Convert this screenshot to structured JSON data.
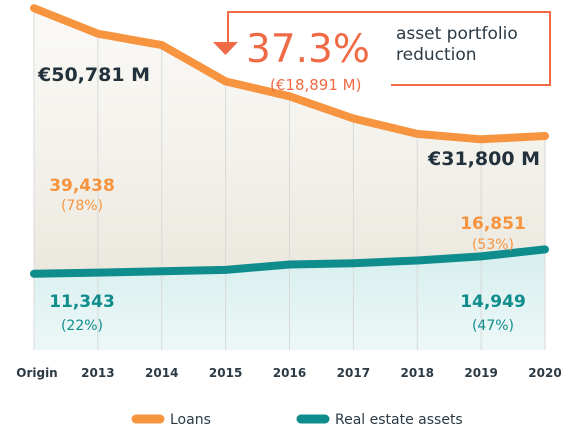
{
  "chart_data": {
    "type": "area",
    "categories": [
      "Origin",
      "2013",
      "2014",
      "2015",
      "2016",
      "2017",
      "2018",
      "2019",
      "2020"
    ],
    "series": [
      {
        "name": "Loans",
        "color": "#f7943f",
        "values": [
          39438,
          35500,
          33600,
          28000,
          25000,
          21500,
          18800,
          17400,
          16851
        ]
      },
      {
        "name": "Real estate assets",
        "color": "#0f8d8d",
        "values": [
          11343,
          11500,
          11700,
          11900,
          12700,
          12900,
          13300,
          13900,
          14949
        ]
      }
    ],
    "ylim": [
      0,
      52000
    ],
    "annotations": {
      "start_total": "€50,781 M",
      "end_total": "€31,800 M",
      "start_loans": "39,438",
      "start_loans_pct": "(78%)",
      "start_re": "11,343",
      "start_re_pct": "(22%)",
      "end_loans": "16,851",
      "end_loans_pct": "(53%)",
      "end_re": "14,949",
      "end_re_pct": "(47%)",
      "reduction_pct": "37.3%",
      "reduction_line1": "asset portfolio",
      "reduction_line2": "reduction",
      "reduction_amount": "(€18,891 M)"
    },
    "legend": [
      "Loans",
      "Real estate assets"
    ],
    "legend_position": "bottom"
  }
}
